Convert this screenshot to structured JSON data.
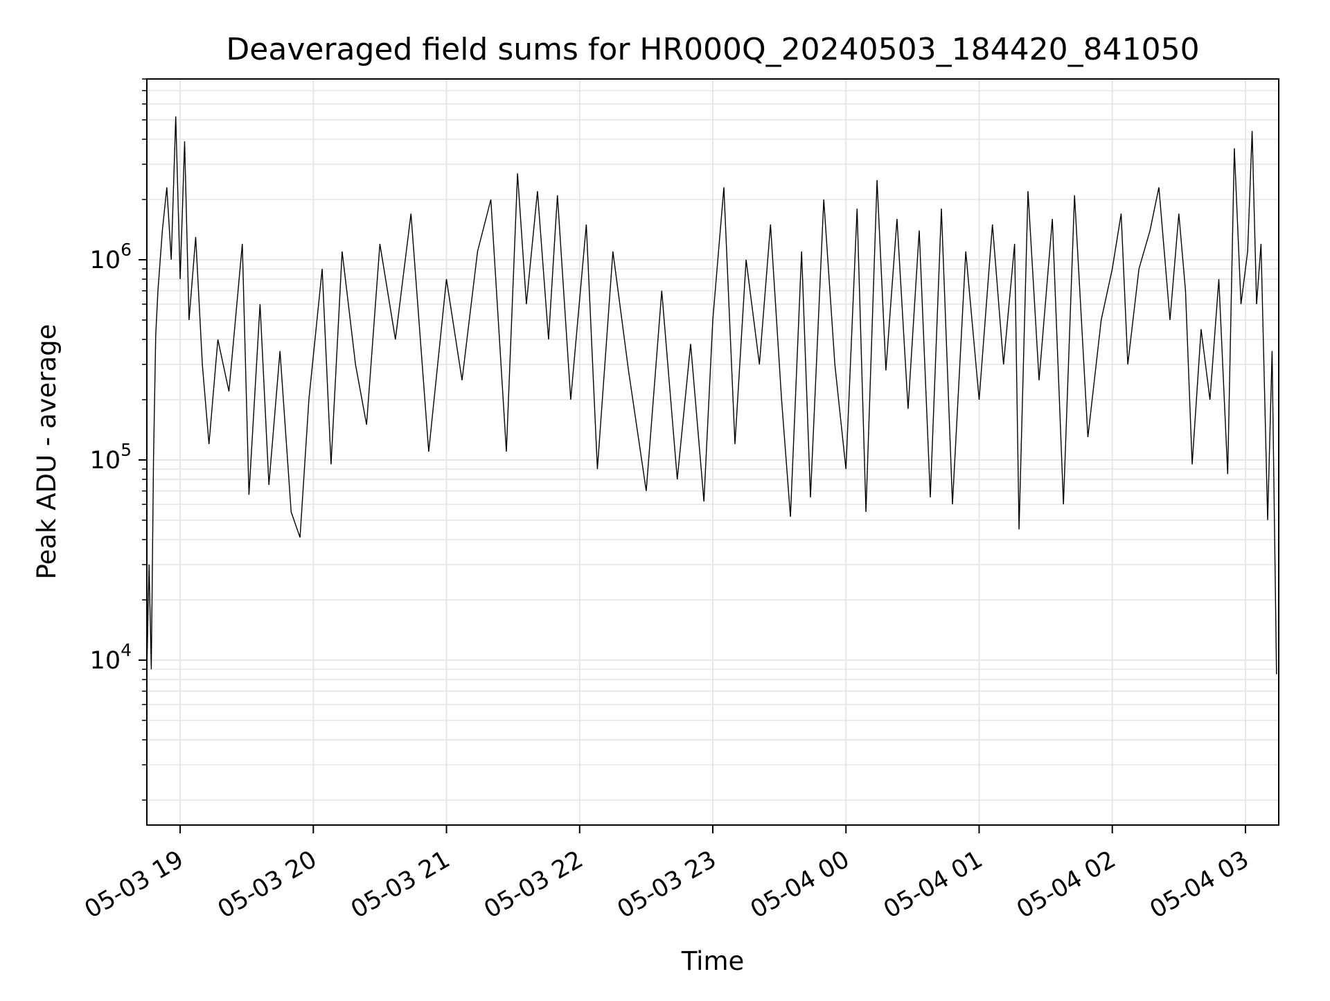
{
  "chart_data": {
    "type": "line",
    "title": "Deaveraged field sums for HR000Q_20240503_184420_841050",
    "xlabel": "Time",
    "ylabel": "Peak ADU - average",
    "x_range": [
      "2024-05-03 18:45",
      "2024-05-04 03:15"
    ],
    "y_scale": "log",
    "ylim": [
      1500,
      8000000
    ],
    "grid": true,
    "line_color": "#000000",
    "grid_color": "#e6e6e6",
    "x_ticks": [
      {
        "time": "2024-05-03 19:00",
        "label": "05-03 19"
      },
      {
        "time": "2024-05-03 20:00",
        "label": "05-03 20"
      },
      {
        "time": "2024-05-03 21:00",
        "label": "05-03 21"
      },
      {
        "time": "2024-05-03 22:00",
        "label": "05-03 22"
      },
      {
        "time": "2024-05-03 23:00",
        "label": "05-03 23"
      },
      {
        "time": "2024-05-04 00:00",
        "label": "05-04 00"
      },
      {
        "time": "2024-05-04 01:00",
        "label": "05-04 01"
      },
      {
        "time": "2024-05-04 02:00",
        "label": "05-04 02"
      },
      {
        "time": "2024-05-04 03:00",
        "label": "05-04 03"
      }
    ],
    "y_ticks": [
      {
        "value": 10000,
        "base": "10",
        "exp": "4"
      },
      {
        "value": 100000,
        "base": "10",
        "exp": "5"
      },
      {
        "value": 1000000,
        "base": "10",
        "exp": "6"
      }
    ],
    "series": [
      {
        "points": [
          [
            "2024-05-03 18:45",
            9000
          ],
          [
            "2024-05-03 18:46",
            30000
          ],
          [
            "2024-05-03 18:47",
            9000
          ],
          [
            "2024-05-03 18:48",
            100000
          ],
          [
            "2024-05-03 18:49",
            420000
          ],
          [
            "2024-05-03 18:50",
            700000
          ],
          [
            "2024-05-03 18:52",
            1400000
          ],
          [
            "2024-05-03 18:54",
            2300000
          ],
          [
            "2024-05-03 18:56",
            1000000
          ],
          [
            "2024-05-03 18:58",
            5200000
          ],
          [
            "2024-05-03 19:00",
            800000
          ],
          [
            "2024-05-03 19:02",
            3900000
          ],
          [
            "2024-05-03 19:04",
            500000
          ],
          [
            "2024-05-03 19:07",
            1300000
          ],
          [
            "2024-05-03 19:10",
            300000
          ],
          [
            "2024-05-03 19:13",
            120000
          ],
          [
            "2024-05-03 19:17",
            400000
          ],
          [
            "2024-05-03 19:22",
            220000
          ],
          [
            "2024-05-03 19:28",
            1200000
          ],
          [
            "2024-05-03 19:31",
            67000
          ],
          [
            "2024-05-03 19:36",
            600000
          ],
          [
            "2024-05-03 19:40",
            75000
          ],
          [
            "2024-05-03 19:45",
            350000
          ],
          [
            "2024-05-03 19:50",
            55000
          ],
          [
            "2024-05-03 19:54",
            41000
          ],
          [
            "2024-05-03 19:58",
            200000
          ],
          [
            "2024-05-03 20:04",
            900000
          ],
          [
            "2024-05-03 20:08",
            95000
          ],
          [
            "2024-05-03 20:13",
            1100000
          ],
          [
            "2024-05-03 20:19",
            300000
          ],
          [
            "2024-05-03 20:24",
            150000
          ],
          [
            "2024-05-03 20:30",
            1200000
          ],
          [
            "2024-05-03 20:37",
            400000
          ],
          [
            "2024-05-03 20:44",
            1700000
          ],
          [
            "2024-05-03 20:52",
            110000
          ],
          [
            "2024-05-03 21:00",
            800000
          ],
          [
            "2024-05-03 21:07",
            250000
          ],
          [
            "2024-05-03 21:14",
            1100000
          ],
          [
            "2024-05-03 21:20",
            2000000
          ],
          [
            "2024-05-03 21:27",
            110000
          ],
          [
            "2024-05-03 21:32",
            2700000
          ],
          [
            "2024-05-03 21:36",
            600000
          ],
          [
            "2024-05-03 21:41",
            2200000
          ],
          [
            "2024-05-03 21:46",
            400000
          ],
          [
            "2024-05-03 21:50",
            2100000
          ],
          [
            "2024-05-03 21:56",
            200000
          ],
          [
            "2024-05-03 22:03",
            1500000
          ],
          [
            "2024-05-03 22:08",
            90000
          ],
          [
            "2024-05-03 22:15",
            1100000
          ],
          [
            "2024-05-03 22:22",
            280000
          ],
          [
            "2024-05-03 22:30",
            70000
          ],
          [
            "2024-05-03 22:37",
            700000
          ],
          [
            "2024-05-03 22:44",
            80000
          ],
          [
            "2024-05-03 22:50",
            380000
          ],
          [
            "2024-05-03 22:56",
            62000
          ],
          [
            "2024-05-03 23:00",
            500000
          ],
          [
            "2024-05-03 23:05",
            2300000
          ],
          [
            "2024-05-03 23:10",
            120000
          ],
          [
            "2024-05-03 23:15",
            1000000
          ],
          [
            "2024-05-03 23:21",
            300000
          ],
          [
            "2024-05-03 23:26",
            1500000
          ],
          [
            "2024-05-03 23:31",
            200000
          ],
          [
            "2024-05-03 23:35",
            52000
          ],
          [
            "2024-05-03 23:40",
            1100000
          ],
          [
            "2024-05-03 23:44",
            65000
          ],
          [
            "2024-05-03 23:50",
            2000000
          ],
          [
            "2024-05-03 23:55",
            300000
          ],
          [
            "2024-05-04 00:00",
            90000
          ],
          [
            "2024-05-04 00:05",
            1800000
          ],
          [
            "2024-05-04 00:09",
            55000
          ],
          [
            "2024-05-04 00:14",
            2500000
          ],
          [
            "2024-05-04 00:18",
            280000
          ],
          [
            "2024-05-04 00:23",
            1600000
          ],
          [
            "2024-05-04 00:28",
            180000
          ],
          [
            "2024-05-04 00:33",
            1400000
          ],
          [
            "2024-05-04 00:38",
            65000
          ],
          [
            "2024-05-04 00:43",
            1800000
          ],
          [
            "2024-05-04 00:48",
            60000
          ],
          [
            "2024-05-04 00:54",
            1100000
          ],
          [
            "2024-05-04 01:00",
            200000
          ],
          [
            "2024-05-04 01:06",
            1500000
          ],
          [
            "2024-05-04 01:11",
            300000
          ],
          [
            "2024-05-04 01:16",
            1200000
          ],
          [
            "2024-05-04 01:18",
            45000
          ],
          [
            "2024-05-04 01:22",
            2200000
          ],
          [
            "2024-05-04 01:27",
            250000
          ],
          [
            "2024-05-04 01:33",
            1600000
          ],
          [
            "2024-05-04 01:38",
            60000
          ],
          [
            "2024-05-04 01:43",
            2100000
          ],
          [
            "2024-05-04 01:49",
            130000
          ],
          [
            "2024-05-04 01:55",
            500000
          ],
          [
            "2024-05-04 02:00",
            900000
          ],
          [
            "2024-05-04 02:04",
            1700000
          ],
          [
            "2024-05-04 02:07",
            300000
          ],
          [
            "2024-05-04 02:12",
            900000
          ],
          [
            "2024-05-04 02:17",
            1400000
          ],
          [
            "2024-05-04 02:21",
            2300000
          ],
          [
            "2024-05-04 02:26",
            500000
          ],
          [
            "2024-05-04 02:30",
            1700000
          ],
          [
            "2024-05-04 02:33",
            700000
          ],
          [
            "2024-05-04 02:36",
            95000
          ],
          [
            "2024-05-04 02:40",
            450000
          ],
          [
            "2024-05-04 02:44",
            200000
          ],
          [
            "2024-05-04 02:48",
            800000
          ],
          [
            "2024-05-04 02:52",
            85000
          ],
          [
            "2024-05-04 02:55",
            3600000
          ],
          [
            "2024-05-04 02:58",
            600000
          ],
          [
            "2024-05-04 03:01",
            1100000
          ],
          [
            "2024-05-04 03:03",
            4400000
          ],
          [
            "2024-05-04 03:05",
            600000
          ],
          [
            "2024-05-04 03:07",
            1200000
          ],
          [
            "2024-05-04 03:10",
            50000
          ],
          [
            "2024-05-04 03:12",
            350000
          ],
          [
            "2024-05-04 03:14",
            8500
          ]
        ]
      }
    ]
  }
}
